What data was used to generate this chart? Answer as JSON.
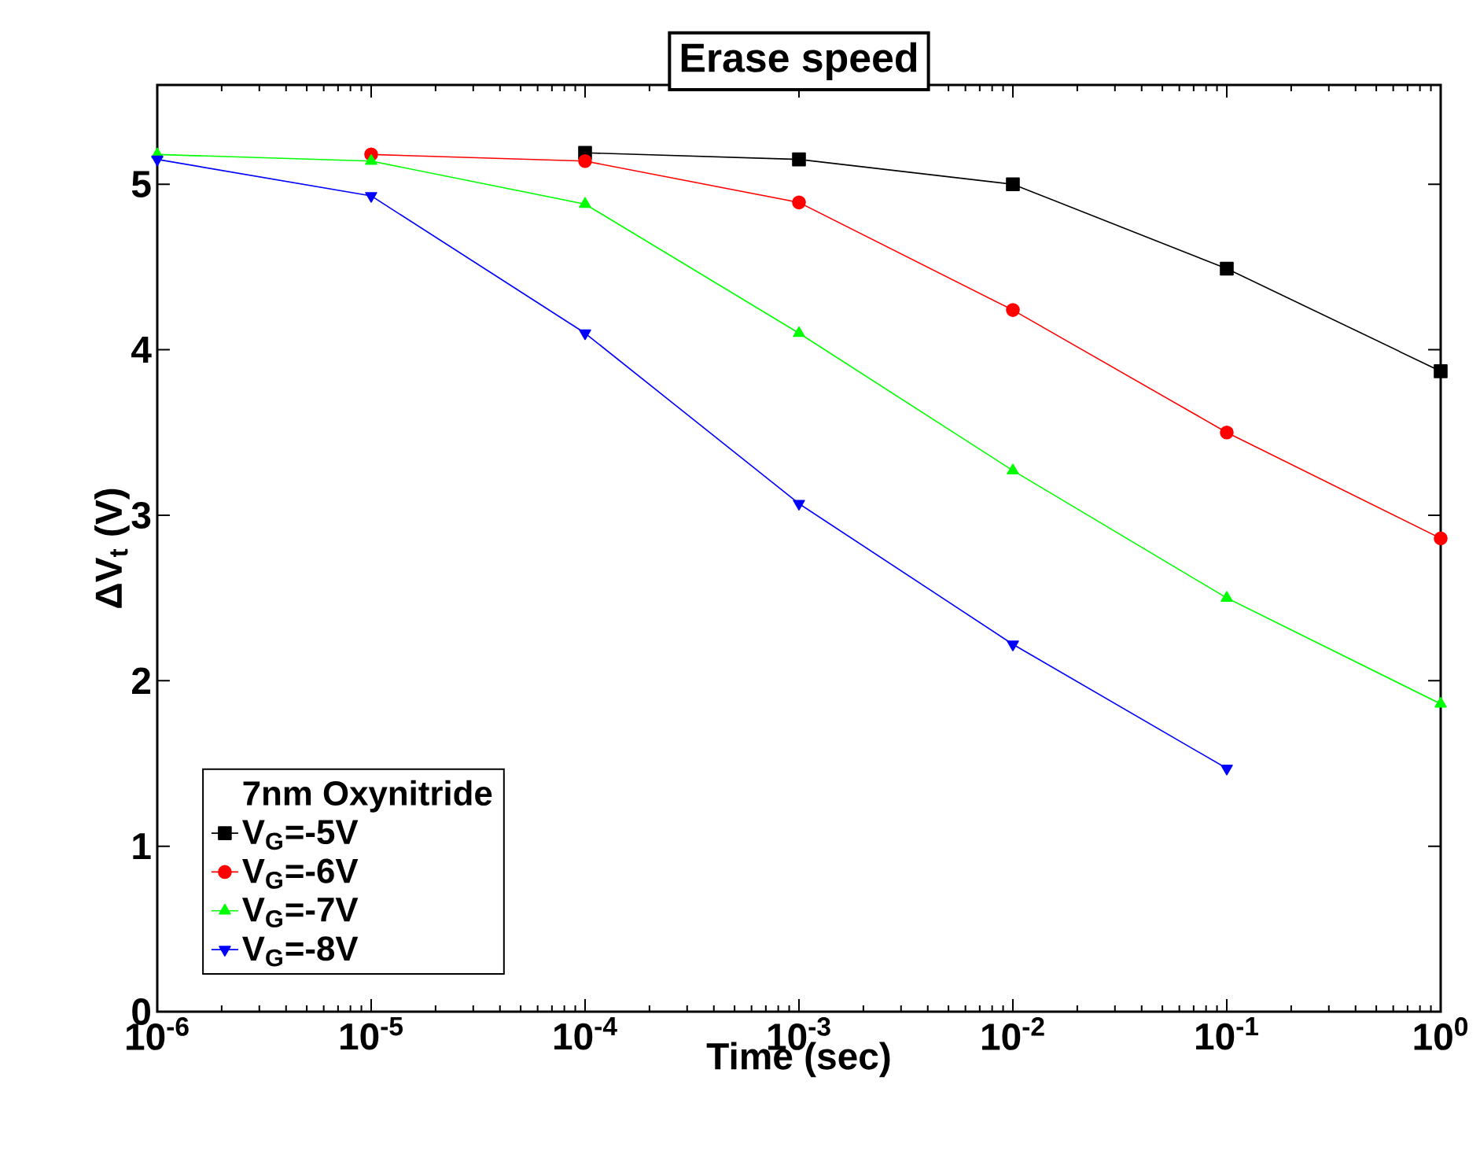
{
  "chart_data": {
    "type": "line",
    "title": "Erase speed",
    "xlabel": "Time (sec)",
    "ylabel": "ΔV$_{t}$  (V)",
    "legend_title": "7nm Oxynitride",
    "x": [
      1e-06,
      1e-05,
      0.0001,
      0.001,
      0.01,
      0.1,
      1
    ],
    "series": [
      {
        "name": "V$_{G}$=-5V",
        "color": "#000000",
        "marker": "square",
        "values": [
          null,
          null,
          5.19,
          5.15,
          5.0,
          4.49,
          3.87
        ]
      },
      {
        "name": "V$_{G}$=-6V",
        "color": "#ff0000",
        "marker": "circle",
        "values": [
          null,
          5.18,
          5.14,
          4.89,
          4.24,
          3.5,
          2.86
        ]
      },
      {
        "name": "V$_{G}$=-7V",
        "color": "#00ff00",
        "marker": "triangle",
        "values": [
          5.18,
          5.14,
          4.88,
          4.1,
          3.27,
          2.5,
          1.86
        ]
      },
      {
        "name": "V$_{G}$=-8V",
        "color": "#0000ff",
        "marker": "triangle-down",
        "values": [
          5.15,
          4.93,
          4.1,
          3.07,
          2.22,
          1.47,
          null
        ]
      }
    ],
    "log": "x",
    "xlim": [
      1e-06,
      1
    ],
    "ylim": [
      0,
      5.6
    ],
    "xticks": [
      {
        "value": 1e-06,
        "label": "10$^{-6}$"
      },
      {
        "value": 1e-05,
        "label": "10$^{-5}$"
      },
      {
        "value": 0.0001,
        "label": "10$^{-4}$"
      },
      {
        "value": 0.001,
        "label": "10$^{-3}$"
      },
      {
        "value": 0.01,
        "label": "10$^{-2}$"
      },
      {
        "value": 0.1,
        "label": "10$^{-1}$"
      },
      {
        "value": 1,
        "label": "10$^{0}$"
      }
    ],
    "yticks": [
      0,
      1,
      2,
      3,
      4,
      5
    ],
    "legend": "bottom left",
    "grid": false,
    "line_style": "solid"
  }
}
